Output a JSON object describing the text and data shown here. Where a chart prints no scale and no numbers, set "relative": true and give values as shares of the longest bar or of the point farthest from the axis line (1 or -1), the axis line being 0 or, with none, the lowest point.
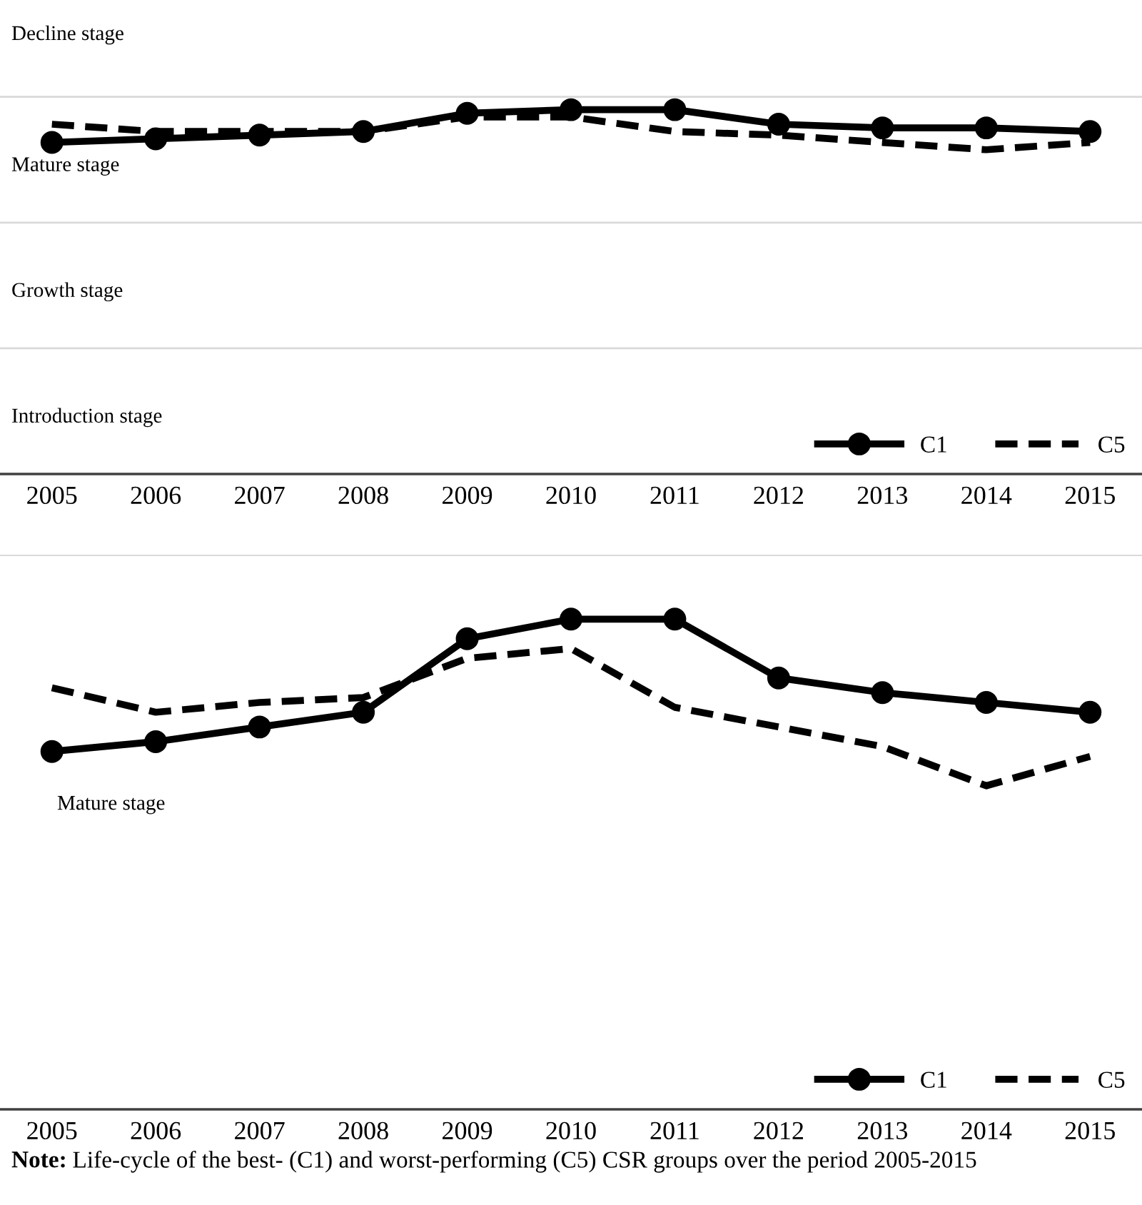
{
  "chart_data": [
    {
      "type": "line",
      "relative": true,
      "categories": [
        "2005",
        "2006",
        "2007",
        "2008",
        "2009",
        "2010",
        "2011",
        "2012",
        "2013",
        "2014",
        "2015"
      ],
      "series": [
        {
          "name": "C1",
          "color": "#000000",
          "marker": "circle",
          "line_style": "solid",
          "values": [
            0.91,
            0.92,
            0.93,
            0.94,
            0.99,
            1,
            1,
            0.96,
            0.95,
            0.95,
            0.94
          ]
        },
        {
          "name": "C5",
          "color": "#000000",
          "marker": "none",
          "line_style": "dashed",
          "values": [
            0.96,
            0.94,
            0.94,
            0.94,
            0.98,
            0.98,
            0.94,
            0.93,
            0.91,
            0.89,
            0.91
          ]
        }
      ],
      "ref_lines": [
        {
          "axis": "y",
          "value": 1.035,
          "color": "#d9d9d9"
        },
        {
          "axis": "y",
          "value": 0.69,
          "color": "#d9d9d9"
        },
        {
          "axis": "y",
          "value": 0.345,
          "color": "#d9d9d9"
        }
      ],
      "annotations": [
        "Decline stage",
        "Mature stage",
        "Growth stage",
        "Introduction stage"
      ],
      "legend": "bottom right"
    },
    {
      "type": "line",
      "relative": true,
      "categories": [
        "2005",
        "2006",
        "2007",
        "2008",
        "2009",
        "2010",
        "2011",
        "2012",
        "2013",
        "2014",
        "2015"
      ],
      "series": [
        {
          "name": "C1",
          "color": "#000000",
          "marker": "circle",
          "line_style": "solid",
          "values": [
            0.73,
            0.75,
            0.78,
            0.81,
            0.96,
            1,
            1,
            0.88,
            0.85,
            0.83,
            0.81
          ]
        },
        {
          "name": "C5",
          "color": "#000000",
          "marker": "none",
          "line_style": "dashed",
          "values": [
            0.86,
            0.81,
            0.83,
            0.84,
            0.92,
            0.94,
            0.82,
            0.78,
            0.74,
            0.66,
            0.72
          ]
        }
      ],
      "annotations": [
        "Mature stage",
        "Note: Life-cycle of the best- (C1) and worst-performing (C5) CSR groups over the period 2005-2015"
      ],
      "legend": "bottom right"
    }
  ]
}
